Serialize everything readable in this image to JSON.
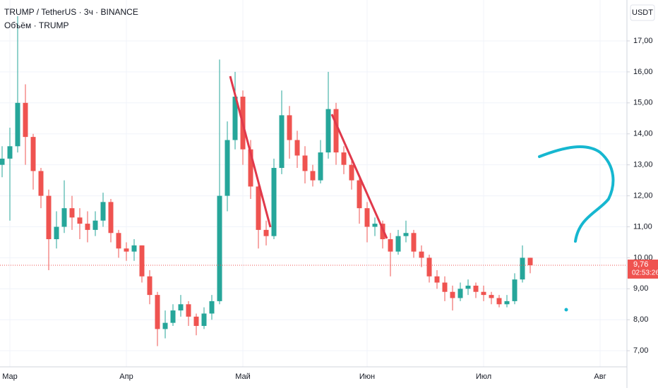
{
  "chart_data": {
    "type": "candlestick",
    "title": "TRUMP / TetherUS · 3ч · BINANCE",
    "subtitle": "Объём · TRUMP",
    "currency": "USDT",
    "categories": [
      null,
      "Мар",
      null,
      null,
      null,
      null,
      null,
      null,
      null,
      null,
      null,
      null,
      null,
      null,
      null,
      null,
      "Апр",
      null,
      null,
      null,
      null,
      null,
      null,
      null,
      null,
      null,
      null,
      null,
      null,
      null,
      null,
      "Май",
      null,
      null,
      null,
      null,
      null,
      null,
      null,
      null,
      null,
      null,
      null,
      null,
      null,
      null,
      null,
      "Июн",
      null,
      null,
      null,
      null,
      null,
      null,
      null,
      null,
      null,
      null,
      null,
      null,
      null,
      null,
      "Июл",
      null,
      null,
      null,
      null,
      null,
      null,
      null,
      null,
      null,
      null,
      null,
      null,
      null,
      null,
      "Авг",
      null,
      null,
      null
    ],
    "open": [
      13.0,
      13.2,
      13.6,
      15.0,
      13.9,
      12.8,
      12.0,
      10.6,
      11.0,
      11.6,
      11.3,
      11.1,
      10.9,
      11.2,
      11.8,
      10.8,
      10.3,
      10.2,
      10.4,
      9.4,
      8.8,
      7.7,
      7.9,
      8.3,
      8.5,
      8.1,
      7.8,
      8.2,
      8.6,
      12.0,
      13.8,
      15.2,
      13.5,
      12.3,
      10.9,
      10.7,
      12.9,
      14.6,
      13.8,
      13.3,
      12.8,
      12.5,
      13.4,
      14.8,
      13.4,
      13.0,
      12.5,
      11.6,
      11.0,
      11.1,
      10.6,
      10.2,
      10.7,
      10.8,
      10.2,
      10.0,
      9.4,
      9.2,
      8.9,
      8.7,
      9.0,
      9.1,
      8.9,
      8.8,
      8.7,
      8.5,
      8.6,
      9.3,
      10.0,
      null,
      null,
      null,
      null,
      null,
      null,
      null,
      null,
      null,
      null,
      null,
      null
    ],
    "high": [
      13.6,
      14.2,
      17.8,
      15.6,
      14.0,
      12.9,
      12.2,
      11.5,
      12.5,
      12.0,
      11.6,
      11.5,
      11.5,
      12.1,
      11.9,
      10.9,
      10.5,
      10.6,
      10.4,
      9.6,
      8.9,
      8.3,
      8.5,
      8.8,
      8.6,
      8.2,
      8.4,
      8.8,
      16.4,
      14.4,
      16.0,
      15.4,
      13.8,
      12.5,
      11.2,
      13.2,
      15.4,
      14.9,
      14.1,
      13.6,
      13.0,
      13.8,
      16.0,
      15.0,
      13.6,
      13.2,
      12.6,
      11.8,
      11.3,
      11.2,
      10.8,
      10.9,
      11.2,
      10.9,
      10.4,
      10.1,
      9.6,
      9.4,
      9.1,
      9.2,
      9.3,
      9.2,
      9.1,
      8.9,
      8.8,
      8.8,
      9.5,
      10.4,
      10.0,
      null,
      null,
      null,
      null,
      null,
      null,
      null,
      null,
      null,
      null,
      null,
      null
    ],
    "low": [
      12.6,
      11.2,
      13.4,
      13.0,
      12.2,
      11.6,
      9.6,
      10.3,
      10.8,
      10.9,
      10.6,
      10.5,
      10.7,
      11.0,
      10.5,
      10.0,
      9.9,
      9.9,
      9.2,
      8.5,
      7.15,
      7.4,
      7.8,
      8.1,
      7.8,
      7.5,
      7.7,
      8.0,
      8.5,
      11.5,
      13.5,
      13.0,
      11.9,
      10.3,
      10.4,
      10.6,
      12.7,
      13.2,
      12.9,
      12.4,
      12.3,
      12.4,
      13.2,
      13.0,
      12.7,
      12.2,
      11.1,
      10.5,
      10.7,
      10.3,
      9.4,
      10.1,
      10.5,
      10.0,
      9.7,
      9.2,
      9.0,
      8.6,
      8.3,
      8.6,
      8.8,
      8.7,
      8.6,
      8.5,
      8.4,
      8.4,
      8.5,
      9.2,
      9.5,
      null,
      null,
      null,
      null,
      null,
      null,
      null,
      null,
      null,
      null,
      null,
      null
    ],
    "close": [
      13.2,
      13.6,
      15.0,
      13.9,
      12.8,
      12.0,
      10.6,
      11.0,
      11.6,
      11.3,
      11.1,
      10.9,
      11.2,
      11.8,
      10.8,
      10.3,
      10.2,
      10.4,
      9.4,
      8.8,
      7.7,
      7.9,
      8.3,
      8.5,
      8.1,
      7.8,
      8.2,
      8.6,
      12.0,
      13.8,
      15.2,
      13.5,
      12.3,
      10.9,
      10.7,
      12.9,
      14.6,
      13.8,
      13.3,
      12.8,
      12.5,
      13.4,
      14.8,
      13.4,
      13.0,
      12.5,
      11.6,
      11.0,
      11.1,
      10.6,
      10.2,
      10.7,
      10.8,
      10.2,
      10.0,
      9.4,
      9.2,
      8.9,
      8.7,
      9.0,
      9.1,
      8.9,
      8.8,
      8.7,
      8.5,
      8.6,
      9.3,
      10.0,
      9.76,
      null,
      null,
      null,
      null,
      null,
      null,
      null,
      null,
      null,
      null,
      null,
      null
    ],
    "up_color": "#26a69a",
    "down_color": "#ef5350",
    "ylim": [
      6.48,
      18.32
    ],
    "yticks": [
      {
        "value": 7,
        "label": "7,00"
      },
      {
        "value": 8,
        "label": "8,00"
      },
      {
        "value": 9,
        "label": "9,00"
      },
      {
        "value": 10,
        "label": "10,00"
      },
      {
        "value": 11,
        "label": "11,00"
      },
      {
        "value": 12,
        "label": "12,00"
      },
      {
        "value": 13,
        "label": "13,00"
      },
      {
        "value": 14,
        "label": "14,00"
      },
      {
        "value": 15,
        "label": "15,00"
      },
      {
        "value": 16,
        "label": "16,00"
      },
      {
        "value": 17,
        "label": "17,00"
      }
    ],
    "last_price": {
      "value": 9.76,
      "label": "9,76"
    },
    "countdown": "02:53:26",
    "grid": true
  }
}
